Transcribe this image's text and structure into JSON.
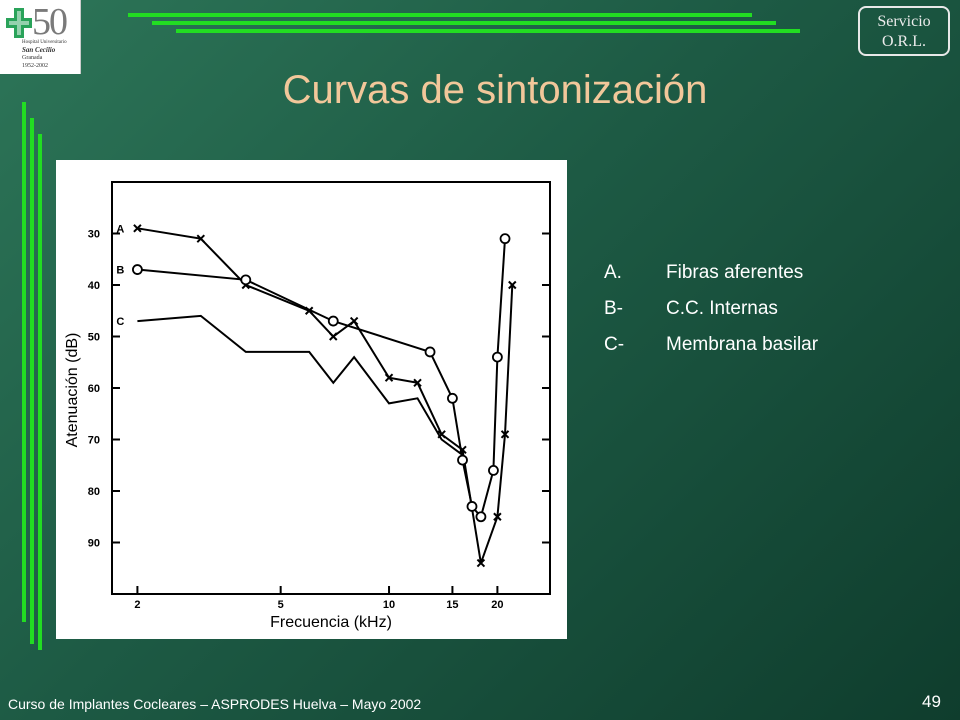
{
  "logo": {
    "number": "50",
    "line1": "Hospital Universitario",
    "line2": "San Cecilio",
    "line3": "Granada",
    "line4": "1952-2002"
  },
  "badge": {
    "line1": "Servicio",
    "line2": "O.R.L."
  },
  "title": "Curvas de sintonización",
  "legend": [
    {
      "key": "A.",
      "label": "Fibras aferentes"
    },
    {
      "key": "B-",
      "label": "C.C. Internas"
    },
    {
      "key": "C-",
      "label": "Membrana basilar"
    }
  ],
  "footer": "Curso de Implantes Cocleares – ASPRODES Huelva – Mayo 2002",
  "page_number": "49",
  "colors": {
    "accent_green": "#22dd22",
    "title": "#f2c79a"
  },
  "chart_data": {
    "type": "line",
    "xlabel": "Frecuencia (kHz)",
    "ylabel": "Atenuación (dB)",
    "x_scale": "log",
    "xlim": [
      1.7,
      28
    ],
    "ylim": [
      100,
      20
    ],
    "x_ticks": [
      2,
      5,
      10,
      15,
      20
    ],
    "y_ticks": [
      30,
      40,
      50,
      60,
      70,
      80,
      90
    ],
    "series": [
      {
        "name": "A",
        "marker": "x",
        "x": [
          2,
          3,
          4,
          6,
          7,
          8,
          10,
          12,
          14,
          16,
          18,
          20,
          21,
          22
        ],
        "y": [
          29,
          31,
          40,
          45,
          50,
          47,
          58,
          59,
          69,
          72,
          94,
          85,
          69,
          40
        ]
      },
      {
        "name": "B",
        "marker": "o",
        "x": [
          2,
          4,
          7,
          13,
          15,
          16,
          17,
          18,
          19.5,
          20,
          21
        ],
        "y": [
          37,
          39,
          47,
          53,
          62,
          74,
          83,
          85,
          76,
          54,
          31
        ]
      },
      {
        "name": "C",
        "marker": "none",
        "x": [
          2,
          3,
          4,
          6,
          7,
          8,
          10,
          12,
          14,
          16
        ],
        "y": [
          47,
          46,
          53,
          53,
          59,
          54,
          63,
          62,
          70,
          73
        ]
      }
    ]
  }
}
